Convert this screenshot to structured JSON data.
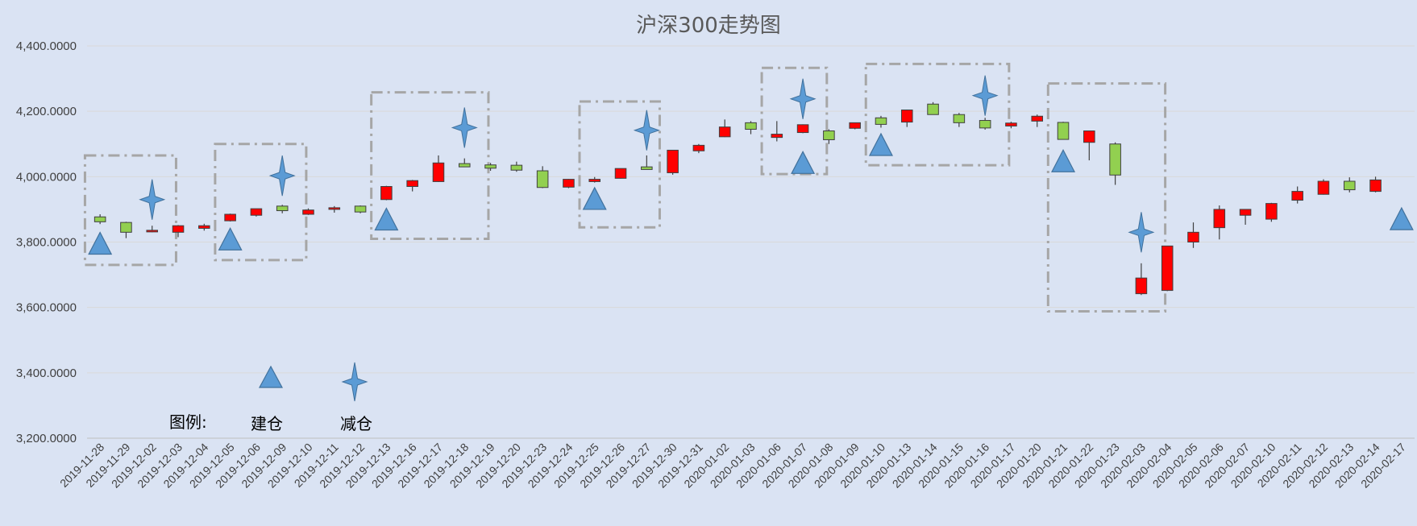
{
  "chart_data": {
    "type": "candlestick",
    "title": "沪深300走势图",
    "ylim": [
      3200,
      4400
    ],
    "yticks": [
      "3,200.0000",
      "3,400.0000",
      "3,600.0000",
      "3,800.0000",
      "4,000.0000",
      "4,200.0000",
      "4,400.0000"
    ],
    "grid": true,
    "colors": {
      "up": "#ff0000",
      "down": "#92d050",
      "marker": "#5b9bd5",
      "marker_stroke": "#41719c",
      "box": "#a6a6a6",
      "grid": "#d9d9d9"
    },
    "categories": [
      "2019-11-28",
      "2019-11-29",
      "2019-12-02",
      "2019-12-03",
      "2019-12-04",
      "2019-12-05",
      "2019-12-06",
      "2019-12-09",
      "2019-12-10",
      "2019-12-11",
      "2019-12-12",
      "2019-12-13",
      "2019-12-16",
      "2019-12-17",
      "2019-12-18",
      "2019-12-19",
      "2019-12-20",
      "2019-12-23",
      "2019-12-24",
      "2019-12-25",
      "2019-12-26",
      "2019-12-27",
      "2019-12-30",
      "2019-12-31",
      "2020-01-02",
      "2020-01-03",
      "2020-01-06",
      "2020-01-07",
      "2020-01-08",
      "2020-01-09",
      "2020-01-10",
      "2020-01-13",
      "2020-01-14",
      "2020-01-15",
      "2020-01-16",
      "2020-01-17",
      "2020-01-20",
      "2020-01-21",
      "2020-01-22",
      "2020-01-23",
      "2020-02-03",
      "2020-02-04",
      "2020-02-05",
      "2020-02-06",
      "2020-02-07",
      "2020-02-10",
      "2020-02-11",
      "2020-02-12",
      "2020-02-13",
      "2020-02-14",
      "2020-02-17"
    ],
    "ohlc": [
      [
        3877,
        3885,
        3855,
        3862
      ],
      [
        3860,
        3862,
        3812,
        3830
      ],
      [
        3834,
        3850,
        3830,
        3836
      ],
      [
        3830,
        3852,
        3815,
        3850
      ],
      [
        3842,
        3856,
        3835,
        3850
      ],
      [
        3865,
        3887,
        3863,
        3885
      ],
      [
        3882,
        3902,
        3878,
        3902
      ],
      [
        3910,
        3914,
        3888,
        3896
      ],
      [
        3885,
        3903,
        3883,
        3898
      ],
      [
        3900,
        3910,
        3890,
        3905
      ],
      [
        3910,
        3912,
        3888,
        3892
      ],
      [
        3930,
        3972,
        3928,
        3970
      ],
      [
        3970,
        3990,
        3955,
        3988
      ],
      [
        3985,
        4065,
        3984,
        4042
      ],
      [
        4040,
        4056,
        4030,
        4030
      ],
      [
        4036,
        4042,
        4018,
        4026
      ],
      [
        4035,
        4046,
        4015,
        4020
      ],
      [
        4018,
        4032,
        3965,
        3967
      ],
      [
        3968,
        3993,
        3965,
        3992
      ],
      [
        3985,
        3999,
        3982,
        3992
      ],
      [
        3995,
        4025,
        3994,
        4025
      ],
      [
        4030,
        4065,
        4025,
        4022
      ],
      [
        4012,
        4082,
        4006,
        4081
      ],
      [
        4079,
        4100,
        4072,
        4096
      ],
      [
        4122,
        4175,
        4121,
        4152
      ],
      [
        4165,
        4170,
        4130,
        4145
      ],
      [
        4120,
        4170,
        4108,
        4130
      ],
      [
        4135,
        4160,
        4133,
        4159
      ],
      [
        4140,
        4145,
        4100,
        4113
      ],
      [
        4148,
        4165,
        4145,
        4165
      ],
      [
        4180,
        4186,
        4150,
        4160
      ],
      [
        4167,
        4205,
        4152,
        4204
      ],
      [
        4222,
        4228,
        4190,
        4190
      ],
      [
        4190,
        4195,
        4152,
        4165
      ],
      [
        4172,
        4180,
        4144,
        4149
      ],
      [
        4155,
        4168,
        4148,
        4164
      ],
      [
        4170,
        4190,
        4152,
        4185
      ],
      [
        4166,
        4168,
        4116,
        4114
      ],
      [
        4105,
        4140,
        4050,
        4140
      ],
      [
        4100,
        4105,
        3975,
        4005
      ],
      [
        3642,
        3735,
        3638,
        3690
      ],
      [
        3652,
        3788,
        3650,
        3788
      ],
      [
        3800,
        3860,
        3782,
        3830
      ],
      [
        3844,
        3912,
        3808,
        3900
      ],
      [
        3882,
        3900,
        3853,
        3900
      ],
      [
        3870,
        3920,
        3862,
        3918
      ],
      [
        3928,
        3970,
        3918,
        3955
      ],
      [
        3946,
        3992,
        3945,
        3986
      ],
      [
        3986,
        3998,
        3952,
        3960
      ],
      [
        3955,
        4000,
        3952,
        3990
      ],
      []
    ],
    "buy_markers": [
      {
        "x": "2019-11-28",
        "y": 3795
      },
      {
        "x": "2019-12-05",
        "y": 3808
      },
      {
        "x": "2019-12-13",
        "y": 3869
      },
      {
        "x": "2019-12-25",
        "y": 3932
      },
      {
        "x": "2020-01-07",
        "y": 4042
      },
      {
        "x": "2020-01-10",
        "y": 4097
      },
      {
        "x": "2020-01-21",
        "y": 4047
      },
      {
        "x": "2020-02-17",
        "y": 3870
      }
    ],
    "sell_markers": [
      {
        "x": "2019-12-02",
        "y": 3930
      },
      {
        "x": "2019-12-09",
        "y": 4003
      },
      {
        "x": "2019-12-18",
        "y": 4150
      },
      {
        "x": "2019-12-27",
        "y": 4142
      },
      {
        "x": "2020-01-07",
        "y": 4238
      },
      {
        "x": "2020-01-16",
        "y": 4248
      },
      {
        "x": "2020-02-03",
        "y": 3830
      }
    ],
    "boxes": [
      {
        "x0": "2019-11-28",
        "x1": "2019-12-03",
        "y0": 3730,
        "y1": 4065
      },
      {
        "x0": "2019-12-05",
        "x1": "2019-12-10",
        "y0": 3745,
        "y1": 4100
      },
      {
        "x0": "2019-12-13",
        "x1": "2019-12-19",
        "y0": 3810,
        "y1": 4258
      },
      {
        "x0": "2019-12-25",
        "x1": "2019-12-28",
        "y0": 3845,
        "y1": 4230
      },
      {
        "x0": "2020-01-06",
        "x1": "2020-01-08",
        "y0": 4008,
        "y1": 4333
      },
      {
        "x0": "2020-01-10",
        "x1": "2020-01-17",
        "y0": 4035,
        "y1": 4345
      },
      {
        "x0": "2020-01-21",
        "x1": "2020-02-04",
        "y0": 3588,
        "y1": 4285
      }
    ],
    "legend": {
      "label": "图例:",
      "buy": "建仓",
      "sell": "减仓"
    }
  }
}
